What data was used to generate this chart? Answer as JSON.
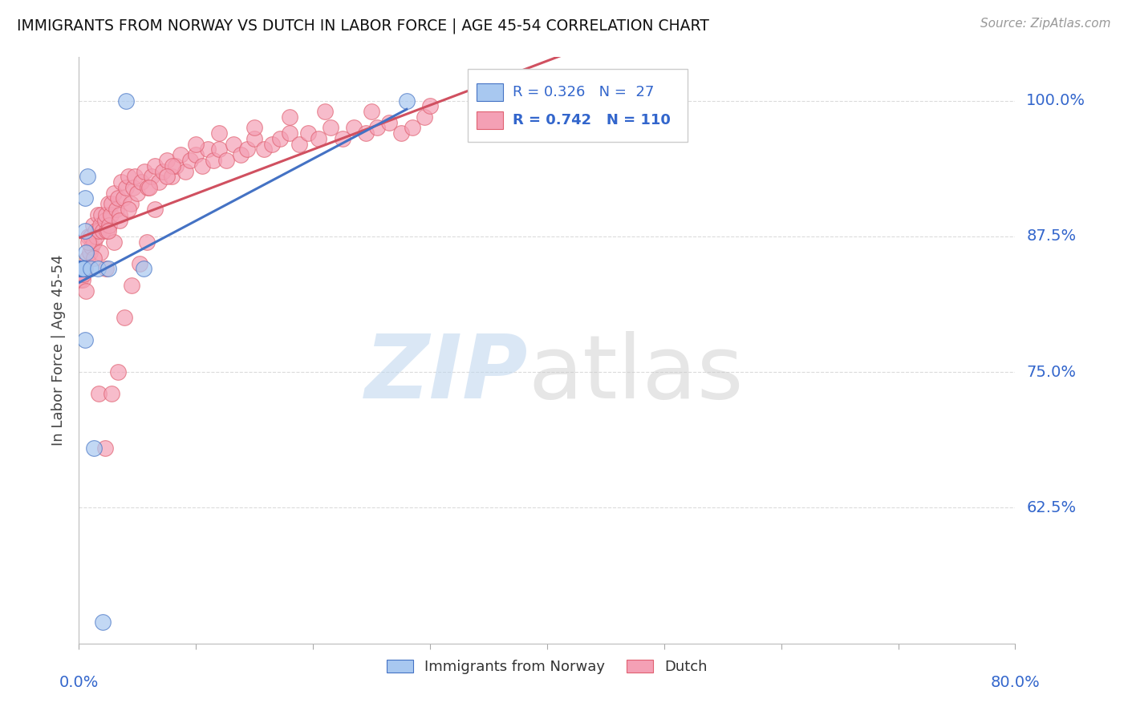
{
  "title": "IMMIGRANTS FROM NORWAY VS DUTCH IN LABOR FORCE | AGE 45-54 CORRELATION CHART",
  "source": "Source: ZipAtlas.com",
  "ylabel": "In Labor Force | Age 45-54",
  "legend_r_norway": "R = 0.326",
  "legend_n_norway": "N =  27",
  "legend_r_dutch": "R = 0.742",
  "legend_n_dutch": "N = 110",
  "color_norway_fill": "#A8C8F0",
  "color_norway_edge": "#4472C4",
  "color_dutch_fill": "#F4A0B5",
  "color_dutch_edge": "#E06070",
  "color_norway_line": "#4472C4",
  "color_dutch_line": "#D05060",
  "color_axis_label": "#3366CC",
  "color_grid": "#CCCCCC",
  "norway_x": [
    0.0005,
    0.001,
    0.001,
    0.001,
    0.002,
    0.002,
    0.002,
    0.002,
    0.003,
    0.003,
    0.003,
    0.003,
    0.004,
    0.004,
    0.005,
    0.005,
    0.005,
    0.006,
    0.007,
    0.01,
    0.013,
    0.016,
    0.02,
    0.025,
    0.04,
    0.055,
    0.28
  ],
  "norway_y": [
    0.845,
    0.845,
    0.845,
    0.845,
    0.845,
    0.845,
    0.845,
    0.845,
    0.845,
    0.845,
    0.845,
    0.845,
    0.845,
    0.845,
    0.91,
    0.88,
    0.78,
    0.86,
    0.93,
    0.845,
    0.68,
    0.845,
    0.52,
    0.845,
    1.0,
    0.845,
    1.0
  ],
  "dutch_x": [
    0.001,
    0.002,
    0.003,
    0.004,
    0.005,
    0.006,
    0.007,
    0.008,
    0.009,
    0.01,
    0.011,
    0.012,
    0.013,
    0.014,
    0.015,
    0.016,
    0.017,
    0.018,
    0.019,
    0.02,
    0.022,
    0.023,
    0.024,
    0.025,
    0.026,
    0.027,
    0.028,
    0.03,
    0.032,
    0.033,
    0.035,
    0.036,
    0.038,
    0.04,
    0.042,
    0.044,
    0.046,
    0.048,
    0.05,
    0.053,
    0.056,
    0.059,
    0.062,
    0.065,
    0.068,
    0.072,
    0.075,
    0.079,
    0.083,
    0.087,
    0.091,
    0.095,
    0.1,
    0.105,
    0.11,
    0.115,
    0.12,
    0.126,
    0.132,
    0.138,
    0.144,
    0.15,
    0.158,
    0.165,
    0.172,
    0.18,
    0.188,
    0.196,
    0.205,
    0.215,
    0.225,
    0.235,
    0.245,
    0.255,
    0.265,
    0.275,
    0.285,
    0.295,
    0.03,
    0.023,
    0.018,
    0.025,
    0.013,
    0.008,
    0.035,
    0.042,
    0.06,
    0.08,
    0.1,
    0.12,
    0.15,
    0.18,
    0.21,
    0.25,
    0.3,
    0.34,
    0.38,
    0.42,
    0.46,
    0.5,
    0.017,
    0.022,
    0.028,
    0.033,
    0.039,
    0.045,
    0.052,
    0.058,
    0.065,
    0.075
  ],
  "dutch_y": [
    0.835,
    0.84,
    0.835,
    0.84,
    0.845,
    0.825,
    0.855,
    0.875,
    0.86,
    0.875,
    0.865,
    0.885,
    0.87,
    0.88,
    0.875,
    0.895,
    0.88,
    0.885,
    0.895,
    0.88,
    0.89,
    0.895,
    0.88,
    0.905,
    0.885,
    0.895,
    0.905,
    0.915,
    0.9,
    0.91,
    0.895,
    0.925,
    0.91,
    0.92,
    0.93,
    0.905,
    0.92,
    0.93,
    0.915,
    0.925,
    0.935,
    0.92,
    0.93,
    0.94,
    0.925,
    0.935,
    0.945,
    0.93,
    0.94,
    0.95,
    0.935,
    0.945,
    0.95,
    0.94,
    0.955,
    0.945,
    0.955,
    0.945,
    0.96,
    0.95,
    0.955,
    0.965,
    0.955,
    0.96,
    0.965,
    0.97,
    0.96,
    0.97,
    0.965,
    0.975,
    0.965,
    0.975,
    0.97,
    0.975,
    0.98,
    0.97,
    0.975,
    0.985,
    0.87,
    0.845,
    0.86,
    0.88,
    0.855,
    0.87,
    0.89,
    0.9,
    0.92,
    0.94,
    0.96,
    0.97,
    0.975,
    0.985,
    0.99,
    0.99,
    0.995,
    1.0,
    1.0,
    1.0,
    1.0,
    1.0,
    0.73,
    0.68,
    0.73,
    0.75,
    0.8,
    0.83,
    0.85,
    0.87,
    0.9,
    0.93
  ],
  "xlim": [
    0.0,
    0.8
  ],
  "ylim": [
    0.5,
    1.04
  ],
  "ytick_values": [
    1.0,
    0.875,
    0.75,
    0.625
  ],
  "ytick_labels": [
    "100.0%",
    "87.5%",
    "75.0%",
    "62.5%"
  ],
  "xtick_values": [
    0.0,
    0.1,
    0.2,
    0.3,
    0.4,
    0.5,
    0.6,
    0.7,
    0.8
  ],
  "figsize": [
    14.06,
    8.92
  ],
  "dpi": 100
}
